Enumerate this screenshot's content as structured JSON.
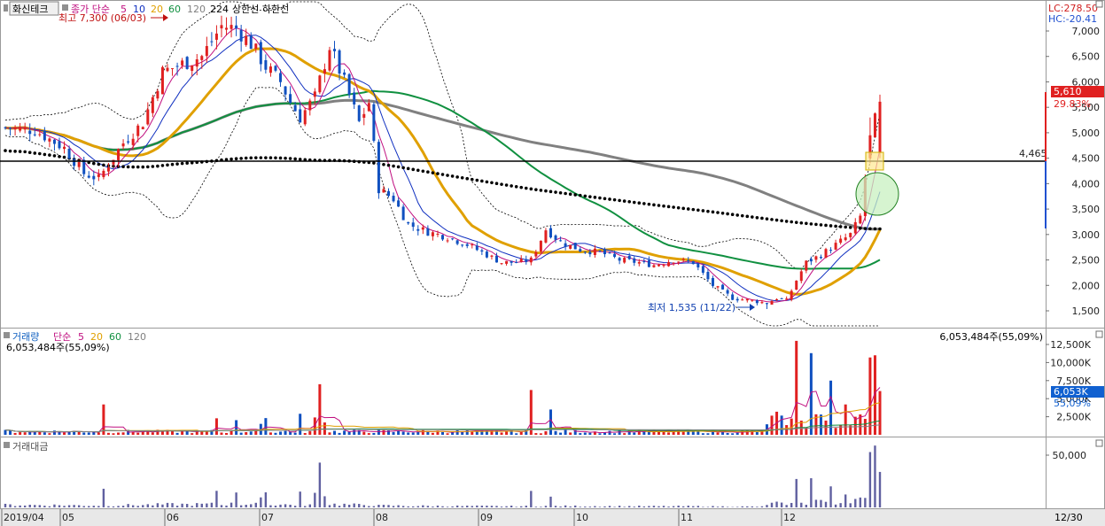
{
  "price_panel": {
    "stock_name": "화신테크",
    "legend_prefix": "종가 단순",
    "legend_ma": [
      "5",
      "10",
      "20",
      "60",
      "120"
    ],
    "legend_ma_colors": [
      "#c01080",
      "#1030c0",
      "#e0a000",
      "#109040",
      "#808080"
    ],
    "legend_extra": "224",
    "legend_bands": "상한선  하한선",
    "high_label": "최고 7,300 (06/03)",
    "low_label": "최저 1,535 (11/22)",
    "lc_label": "LC:278.50",
    "hc_label": "HC:-20.41",
    "current_price": "5,610",
    "change_pct": "29.83%",
    "hline_label": "4,465",
    "y_ticks": [
      "7,000",
      "6,500",
      "6,000",
      "5,500",
      "5,000",
      "4,500",
      "4,000",
      "3,500",
      "3,000",
      "2,500",
      "2,000",
      "1,500"
    ]
  },
  "volume_panel": {
    "title": "거래량",
    "legend_prefix": "단순",
    "legend_ma": [
      "5",
      "20",
      "60",
      "120"
    ],
    "legend_ma_colors": [
      "#c01080",
      "#e0a000",
      "#109040",
      "#808080"
    ],
    "last_volume_left": "6,053,484주(55,09%)",
    "last_volume_right": "6,053,484주(55,09%)",
    "current_badge": "6,053K",
    "badge_pct": "55,09%",
    "y_ticks": [
      "12,500K",
      "10,000K",
      "7,500K",
      "5,000K",
      "2,500K"
    ]
  },
  "amount_panel": {
    "title": "거래대금",
    "y_ticks": [
      "50,000"
    ]
  },
  "x_axis": {
    "labels": [
      "2019/04",
      "05",
      "06",
      "07",
      "08",
      "09",
      "10",
      "11",
      "12"
    ],
    "end_label": "12/30"
  },
  "colors": {
    "up": "#e02020",
    "down": "#1050c0",
    "amount_bar": "#6060a0",
    "hline": "#000000",
    "current_badge_bg": "#e02020",
    "volume_badge_bg": "#1060d0"
  },
  "chart_data": {
    "type": "candlestick",
    "price_range": [
      1250,
      7350
    ],
    "volume_range_k": [
      0,
      14000
    ],
    "amount_range": [
      0,
      60000
    ],
    "horizontal_line": 4465,
    "close_key_points": [
      {
        "month": "2019/04",
        "approx_close": 5000
      },
      {
        "month": "05",
        "approx_close": 6300
      },
      {
        "month": "06",
        "approx_close": 6800
      },
      {
        "month": "07",
        "approx_close": 3500
      },
      {
        "month": "08",
        "approx_close": 2500
      },
      {
        "month": "09",
        "approx_close": 2700
      },
      {
        "month": "10",
        "approx_close": 2450
      },
      {
        "month": "11",
        "approx_close": 1700
      },
      {
        "month": "12",
        "approx_close": 2400
      },
      {
        "month": "12/30",
        "approx_close": 5610
      }
    ],
    "highest": {
      "value": 7300,
      "date": "06/03"
    },
    "lowest": {
      "value": 1535,
      "date": "11/22"
    },
    "last": {
      "close": 5610,
      "change_pct": 29.83,
      "volume": 6053484
    }
  }
}
